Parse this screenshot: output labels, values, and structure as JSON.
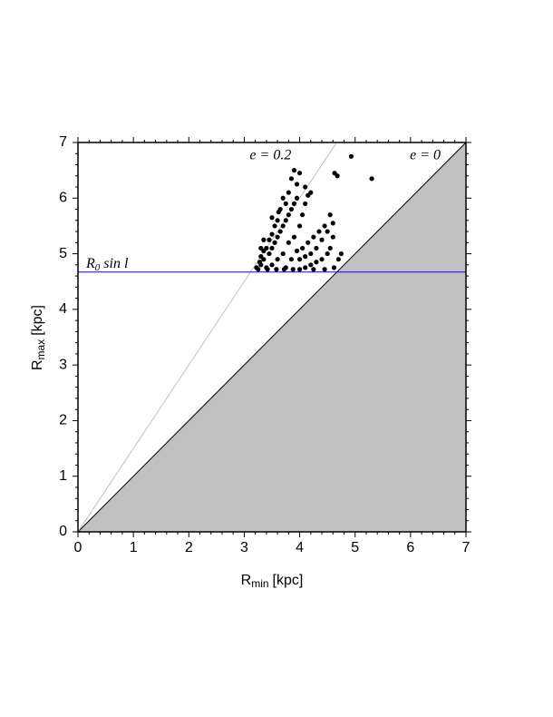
{
  "chart_data": {
    "type": "scatter",
    "x_label": {
      "main": "R",
      "sub": "min",
      "unit": "[kpc]"
    },
    "y_label": {
      "main": "R",
      "sub": "max",
      "unit": "[kpc]"
    },
    "xlim": [
      0,
      7
    ],
    "ylim": [
      0,
      7
    ],
    "xticks": [
      0,
      1,
      2,
      3,
      4,
      5,
      6,
      7
    ],
    "yticks": [
      0,
      1,
      2,
      3,
      4,
      5,
      6,
      7
    ],
    "minor_divisions": 5,
    "color": "#000000",
    "x": [
      3.25,
      3.3,
      3.35,
      3.4,
      3.45,
      3.5,
      3.5,
      3.55,
      3.6,
      3.6,
      3.65,
      3.7,
      3.7,
      3.75,
      3.75,
      3.8,
      3.8,
      3.85,
      3.85,
      3.9,
      3.9,
      3.95,
      3.6,
      3.65,
      3.7,
      3.55,
      3.5,
      3.45,
      3.4,
      3.35,
      3.3,
      3.28,
      3.42,
      3.58,
      3.72,
      3.88,
      4.0,
      4.1,
      4.2,
      4.3,
      4.4,
      4.5,
      4.55,
      4.6,
      4.5,
      4.4,
      4.3,
      4.2,
      4.1,
      4.0,
      3.95,
      4.05,
      4.15,
      4.25,
      4.35,
      4.45,
      4.6,
      4.55,
      4.0,
      4.05,
      4.1,
      4.15,
      4.2,
      4.1,
      3.95,
      3.8,
      3.75,
      3.85,
      3.9,
      4.0,
      4.63,
      4.68,
      4.93,
      5.3,
      3.5,
      3.62,
      3.35,
      3.3,
      3.22,
      4.7,
      4.75,
      4.62,
      4.45,
      4.25
    ],
    "y": [
      4.72,
      4.8,
      4.9,
      4.75,
      5.0,
      5.1,
      4.8,
      5.2,
      5.3,
      4.9,
      5.4,
      5.5,
      5.0,
      5.6,
      4.75,
      5.7,
      5.2,
      5.8,
      4.9,
      5.9,
      5.3,
      6.0,
      5.6,
      5.8,
      6.0,
      5.5,
      5.35,
      5.25,
      5.1,
      5.05,
      4.95,
      4.85,
      4.72,
      4.72,
      4.72,
      4.72,
      4.72,
      4.75,
      4.8,
      4.85,
      4.9,
      5.0,
      5.1,
      5.3,
      5.4,
      5.25,
      5.1,
      5.0,
      4.95,
      4.9,
      5.05,
      5.1,
      5.2,
      5.3,
      5.4,
      5.5,
      5.55,
      5.7,
      5.5,
      5.7,
      5.9,
      6.05,
      6.1,
      6.2,
      6.25,
      6.1,
      5.9,
      6.35,
      6.5,
      6.45,
      6.45,
      6.4,
      6.75,
      6.35,
      5.65,
      5.75,
      5.25,
      5.1,
      4.75,
      4.9,
      5.0,
      4.75,
      4.72,
      4.72
    ],
    "reference_lines": [
      {
        "label": "e = 0",
        "e": 0,
        "color": "#000000"
      },
      {
        "label": "e = 0.2",
        "e": 0.2,
        "color": "#aaaaaa"
      }
    ],
    "forbidden_fill": "#c0c0c0",
    "hline": {
      "value": 4.67,
      "color": "#0000ff",
      "label": {
        "main": "R",
        "sub": "0",
        "rest": " sin l"
      }
    }
  }
}
